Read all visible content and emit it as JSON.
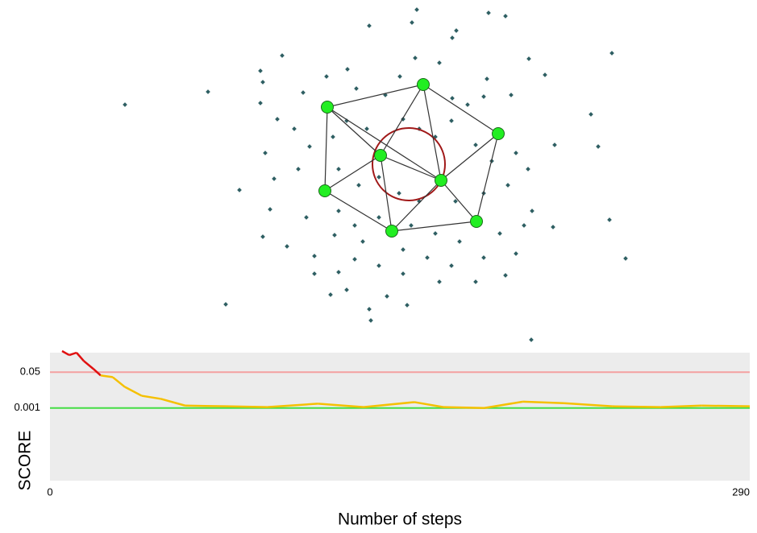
{
  "chart_data": [
    {
      "type": "network",
      "x": [
        517,
        606,
        627,
        511,
        458,
        566,
        561,
        323,
        350,
        258,
        155,
        326,
        759,
        656,
        604,
        676,
        515,
        545,
        431,
        405,
        376,
        442,
        478,
        496,
        561,
        580,
        600,
        634,
        733,
        323,
        344,
        365,
        384,
        413,
        430,
        455,
        500,
        520,
        540,
        560,
        590,
        610,
        640,
        655,
        688,
        742,
        329,
        340,
        370,
        420,
        445,
        470,
        495,
        520,
        565,
        600,
        630,
        660,
        297,
        335,
        380,
        420,
        440,
        470,
        510,
        540,
        570,
        620,
        650,
        686,
        756,
        326,
        356,
        390,
        415,
        450,
        500,
        530,
        560,
        600,
        640,
        776,
        390,
        420,
        440,
        470,
        500,
        545,
        590,
        627,
        410,
        430,
        480,
        280,
        458,
        505,
        460,
        659
      ],
      "y": [
        12,
        16,
        20,
        28,
        32,
        38,
        47,
        88,
        69,
        114,
        130,
        102,
        66,
        73,
        98,
        93,
        72,
        78,
        86,
        95,
        115,
        110,
        118,
        95,
        122,
        130,
        120,
        118,
        142,
        128,
        148,
        160,
        182,
        170,
        150,
        160,
        148,
        160,
        170,
        150,
        180,
        200,
        190,
        210,
        180,
        182,
        190,
        222,
        210,
        210,
        230,
        220,
        240,
        250,
        250,
        240,
        230,
        262,
        236,
        260,
        270,
        262,
        280,
        270,
        280,
        290,
        300,
        290,
        280,
        282,
        273,
        294,
        306,
        318,
        292,
        300,
        310,
        320,
        330,
        320,
        315,
        321,
        340,
        338,
        322,
        330,
        340,
        350,
        350,
        342,
        366,
        360,
        368,
        378,
        384,
        379,
        398,
        422
      ],
      "xlim": [
        0,
        939
      ],
      "ylim": [
        430,
        0
      ],
      "point_color": "#2f5f63",
      "nodes": {
        "x": [
          406,
          525,
          618,
          472,
          547,
          403,
          591,
          486
        ],
        "y": [
          133,
          105,
          166,
          193,
          224,
          237,
          275,
          287
        ],
        "color": "#22ee22"
      },
      "edges": [
        [
          0,
          1
        ],
        [
          1,
          2
        ],
        [
          2,
          6
        ],
        [
          6,
          7
        ],
        [
          7,
          5
        ],
        [
          5,
          0
        ],
        [
          0,
          3
        ],
        [
          3,
          1
        ],
        [
          1,
          4
        ],
        [
          2,
          4
        ],
        [
          3,
          4
        ],
        [
          3,
          5
        ],
        [
          3,
          7
        ],
        [
          4,
          7
        ],
        [
          4,
          6
        ],
        [
          0,
          4
        ]
      ],
      "edge_color": "#333333",
      "circle": {
        "x": 507,
        "y": 204,
        "r": 45,
        "color": "#a01818"
      }
    },
    {
      "type": "line",
      "xlabel": "Number of steps",
      "ylabel": "SCORE",
      "x": [
        5,
        8,
        11,
        14,
        18,
        21,
        26,
        31,
        38,
        46,
        56,
        73,
        90,
        111,
        130,
        151,
        163,
        180,
        196,
        213,
        233,
        253,
        270,
        290
      ],
      "values": [
        0.5,
        0.32,
        0.42,
        0.17,
        0.071,
        0.035,
        0.029,
        0.01,
        0.0038,
        0.0027,
        0.0013,
        0.0012,
        0.0011,
        0.0016,
        0.0011,
        0.0019,
        0.0011,
        0.001,
        0.002,
        0.0017,
        0.0012,
        0.0011,
        0.0013,
        0.0012
      ],
      "color": "#f5c000",
      "above_color": "#e01010",
      "xlim": [
        0,
        290
      ],
      "ylim": [
        3.6e-07,
        0.42
      ],
      "log_scale": true,
      "xticks": [
        0,
        290
      ],
      "yticks": [
        0.05,
        0.001
      ],
      "tick_colors": [
        "#f4a0a0",
        "#44dd44"
      ],
      "background": "#ececec"
    }
  ]
}
